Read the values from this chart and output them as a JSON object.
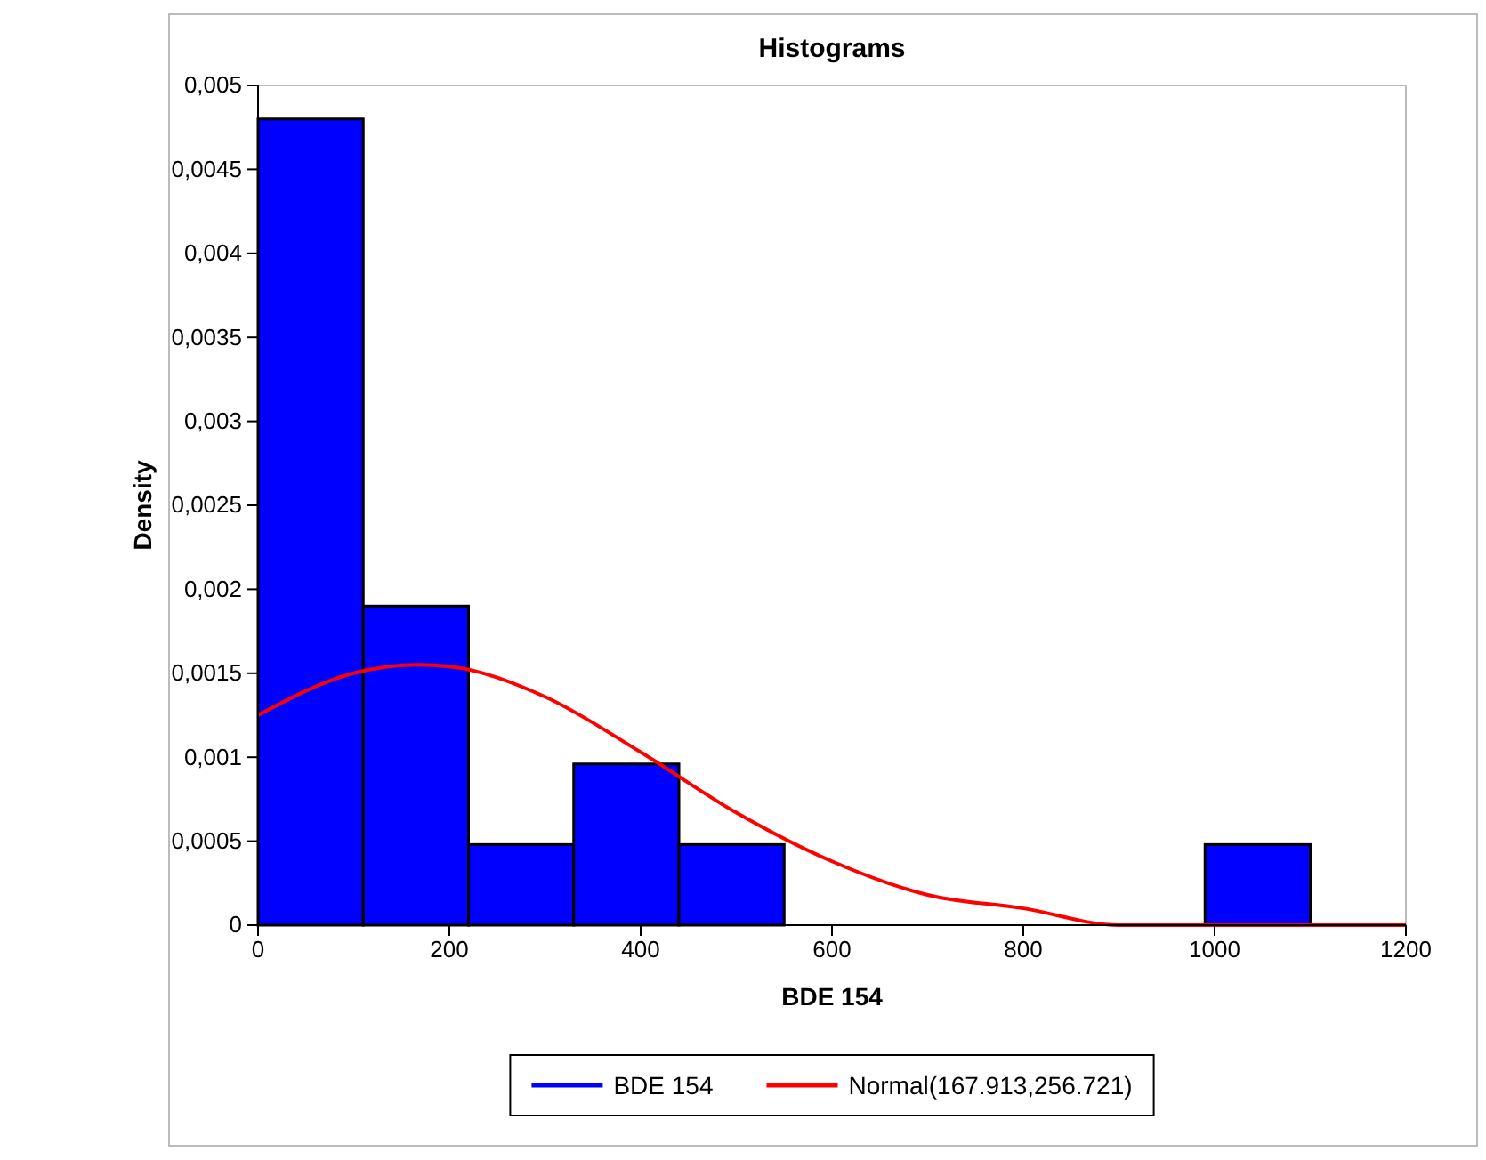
{
  "chart_data": {
    "type": "histogram",
    "title": "Histograms",
    "xlabel": "BDE 154",
    "ylabel": "Density",
    "bins": [
      0,
      110,
      220,
      330,
      440,
      550,
      660,
      770,
      880,
      990,
      1100
    ],
    "series": [
      {
        "name": "BDE 154",
        "color": "#0000ff",
        "values": [
          0.0048,
          0.0019,
          0.00048,
          0.00096,
          0.00048,
          0,
          0,
          0,
          0,
          0.00048
        ]
      },
      {
        "type": "line",
        "name": "Normal(167.913,256.721)",
        "color": "#ff0000",
        "x": [
          0,
          100,
          167.9,
          200,
          300,
          400,
          500,
          600,
          700,
          800,
          900,
          1000,
          1100,
          1200
        ],
        "values": [
          0.00125,
          0.0015,
          0.00155,
          0.00154,
          0.00136,
          0.00103,
          0.00067,
          0.00038,
          0.00018,
          0.0001,
          0,
          0,
          0,
          0
        ]
      }
    ],
    "xlim": [
      0,
      1200
    ],
    "xticks": [
      0,
      200,
      400,
      600,
      800,
      1000,
      1200
    ],
    "ylim": [
      0,
      0.005
    ],
    "yticks": [
      {
        "value": 0,
        "label": "0"
      },
      {
        "value": 0.0005,
        "label": "0,0005"
      },
      {
        "value": 0.001,
        "label": "0,001"
      },
      {
        "value": 0.0015,
        "label": "0,0015"
      },
      {
        "value": 0.002,
        "label": "0,002"
      },
      {
        "value": 0.0025,
        "label": "0,0025"
      },
      {
        "value": 0.003,
        "label": "0,003"
      },
      {
        "value": 0.0035,
        "label": "0,0035"
      },
      {
        "value": 0.004,
        "label": "0,004"
      },
      {
        "value": 0.0045,
        "label": "0,0045"
      },
      {
        "value": 0.005,
        "label": "0,005"
      }
    ],
    "legend": "bottom",
    "grid": false,
    "marker": "none",
    "line_style": "solid"
  }
}
